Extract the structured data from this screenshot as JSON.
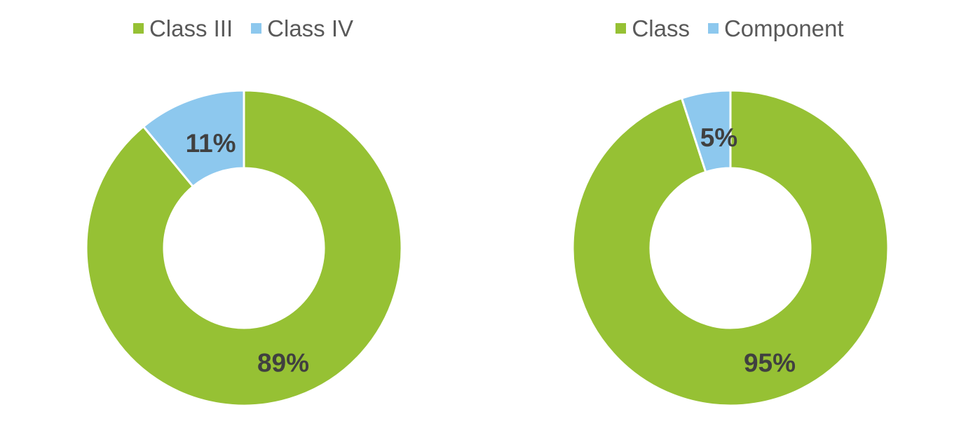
{
  "chart_data": [
    {
      "type": "pie",
      "variant": "donut",
      "legend_position": "top",
      "series": [
        {
          "name": "Class III",
          "value": 89,
          "label": "89%",
          "color": "#96C134"
        },
        {
          "name": "Class IV",
          "value": 11,
          "label": "11%",
          "color": "#8DC8EE"
        }
      ]
    },
    {
      "type": "pie",
      "variant": "donut",
      "legend_position": "top",
      "series": [
        {
          "name": "Class",
          "value": 95,
          "label": "95%",
          "color": "#96C134"
        },
        {
          "name": "Component",
          "value": 5,
          "label": "5%",
          "color": "#8DC8EE"
        }
      ]
    }
  ]
}
